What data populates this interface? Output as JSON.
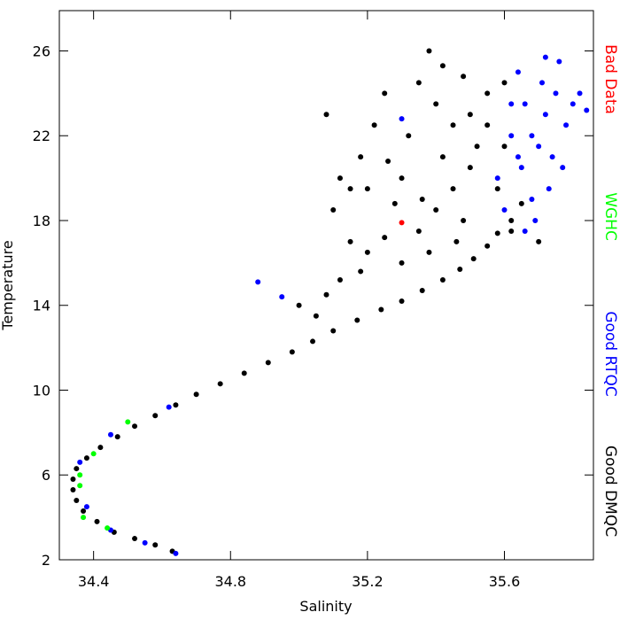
{
  "chart_data": {
    "type": "scatter",
    "x_label": "Salinity",
    "y_label": "Temperature",
    "xlim": [
      34.3,
      35.86
    ],
    "ylim": [
      2,
      27.9
    ],
    "xticks": [
      34.4,
      34.8,
      35.2,
      35.6
    ],
    "yticks": [
      2,
      6,
      10,
      14,
      18,
      22,
      26
    ],
    "series": [
      {
        "name": "Good DMQC",
        "color": "#000000",
        "x": [
          34.63,
          34.58,
          34.52,
          34.46,
          34.41,
          34.37,
          34.35,
          34.34,
          34.34,
          34.35,
          34.38,
          34.42,
          34.47,
          34.52,
          34.58,
          34.64,
          34.7,
          34.77,
          34.84,
          34.91,
          34.98,
          35.04,
          35.1,
          35.17,
          35.24,
          35.3,
          35.36,
          35.42,
          35.47,
          35.51,
          35.55,
          35.58,
          35.62,
          35.05,
          35.08,
          35.12,
          35.18,
          35.2,
          35.25,
          35.3,
          35.35,
          35.4,
          35.45,
          35.48,
          35.5,
          35.52,
          35.45,
          35.4,
          35.35,
          35.38,
          35.42,
          35.48,
          35.55,
          35.6,
          35.25,
          35.22,
          35.18,
          35.15,
          35.12,
          35.1,
          35.08,
          35.3,
          35.32,
          35.28,
          35.2,
          35.42,
          35.58,
          35.62,
          35.65,
          35.7,
          35.55,
          35.36,
          35.46,
          35.0,
          35.15,
          35.38,
          35.6,
          35.5,
          35.26
        ],
        "values": [
          2.4,
          2.7,
          3.0,
          3.3,
          3.8,
          4.3,
          4.8,
          5.3,
          5.8,
          6.3,
          6.8,
          7.3,
          7.8,
          8.3,
          8.8,
          9.3,
          9.8,
          10.3,
          10.8,
          11.3,
          11.8,
          12.3,
          12.8,
          13.3,
          13.8,
          14.2,
          14.7,
          15.2,
          15.7,
          16.2,
          16.8,
          17.4,
          18.0,
          13.5,
          14.5,
          15.2,
          15.6,
          16.5,
          17.2,
          16.0,
          17.5,
          18.5,
          19.5,
          18.0,
          20.5,
          21.5,
          22.5,
          23.5,
          24.5,
          26.0,
          25.3,
          24.8,
          24.0,
          24.5,
          24.0,
          22.5,
          21.0,
          19.5,
          20.0,
          18.5,
          23.0,
          20.0,
          22.0,
          18.8,
          19.5,
          21.0,
          19.5,
          17.5,
          18.8,
          17.0,
          22.5,
          19.0,
          17.0,
          14.0,
          17.0,
          16.5,
          21.5,
          23.0,
          20.8
        ]
      },
      {
        "name": "Good RTQC",
        "color": "#0000ff",
        "x": [
          34.64,
          34.55,
          34.45,
          34.38,
          34.36,
          34.45,
          34.62,
          34.88,
          34.95,
          35.3,
          35.62,
          35.65,
          35.68,
          35.7,
          35.72,
          35.75,
          35.72,
          35.78,
          35.8,
          35.84,
          35.66,
          35.64,
          35.69,
          35.6,
          35.74,
          35.77,
          35.66,
          35.71,
          35.62,
          35.68,
          35.58,
          35.76,
          35.82,
          35.73,
          35.64
        ],
        "values": [
          2.3,
          2.8,
          3.4,
          4.5,
          6.6,
          7.9,
          9.2,
          15.1,
          14.4,
          22.8,
          22.0,
          20.5,
          19.0,
          21.5,
          23.0,
          24.0,
          25.7,
          22.5,
          23.5,
          23.2,
          23.5,
          25.0,
          18.0,
          18.5,
          21.0,
          20.5,
          17.5,
          24.5,
          23.5,
          22.0,
          20.0,
          25.5,
          24.0,
          19.5,
          21.0
        ]
      },
      {
        "name": "WGHC",
        "color": "#00ff00",
        "x": [
          34.36,
          34.37,
          34.4,
          34.5,
          34.44,
          34.36
        ],
        "values": [
          5.5,
          4.0,
          7.0,
          8.5,
          3.5,
          6.0
        ]
      },
      {
        "name": "Bad Data",
        "color": "#ff0000",
        "x": [
          35.3
        ],
        "values": [
          17.9
        ]
      }
    ]
  }
}
